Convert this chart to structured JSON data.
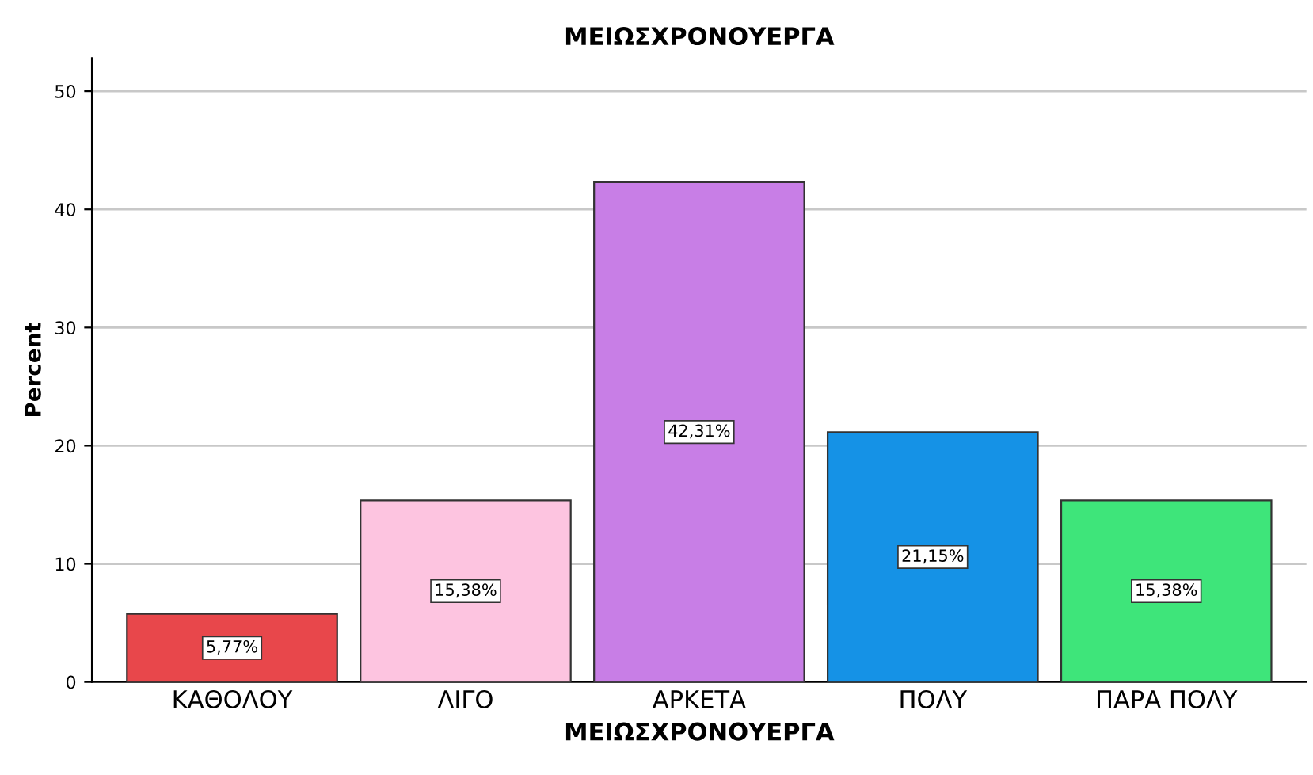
{
  "chart_data": {
    "type": "bar",
    "title": "ΜΕΙΩΣΧΡΟΝΟΥΕΡΓΑ",
    "xlabel": "ΜΕΙΩΣΧΡΟΝΟΥΕΡΓΑ",
    "ylabel": "Percent",
    "categories": [
      "ΚΑΘΟΛΟΥ",
      "ΛΙΓΟ",
      "ΑΡΚΕΤΑ",
      "ΠΟΛΥ",
      "ΠΑΡΑ ΠΟΛΥ"
    ],
    "values": [
      5.77,
      15.38,
      42.31,
      21.15,
      15.38
    ],
    "colors": [
      "#e8474b",
      "#fdc4e0",
      "#c87ee6",
      "#1592e6",
      "#3ee57a"
    ],
    "value_labels": [
      "5,77%",
      "15,38%",
      "42,31%",
      "21,15%",
      "15,38%"
    ],
    "ylim": [
      0,
      52.8
    ],
    "yticks": [
      0,
      10,
      20,
      30,
      40,
      50
    ],
    "grid": "y",
    "legend": false
  }
}
